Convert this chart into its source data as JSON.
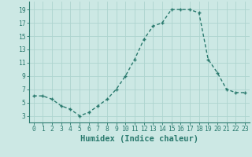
{
  "x": [
    0,
    1,
    2,
    3,
    4,
    5,
    6,
    7,
    8,
    9,
    10,
    11,
    12,
    13,
    14,
    15,
    16,
    17,
    18,
    19,
    20,
    21,
    22,
    23
  ],
  "y": [
    6,
    6,
    5.5,
    4.5,
    4,
    3,
    3.5,
    4.5,
    5.5,
    7,
    9,
    11.5,
    14.5,
    16.5,
    17,
    19,
    19,
    19,
    18.5,
    11.5,
    9.5,
    7,
    6.5,
    6.5
  ],
  "line_color": "#2a7a6e",
  "marker_color": "#2a7a6e",
  "bg_color": "#cce8e4",
  "grid_color": "#aed4cf",
  "xlabel": "Humidex (Indice chaleur)",
  "xlim": [
    -0.5,
    23.5
  ],
  "ylim": [
    2,
    20.2
  ],
  "yticks": [
    3,
    5,
    7,
    9,
    11,
    13,
    15,
    17,
    19
  ],
  "xticks": [
    0,
    1,
    2,
    3,
    4,
    5,
    6,
    7,
    8,
    9,
    10,
    11,
    12,
    13,
    14,
    15,
    16,
    17,
    18,
    19,
    20,
    21,
    22,
    23
  ],
  "tick_fontsize": 5.8,
  "xlabel_fontsize": 7.5
}
